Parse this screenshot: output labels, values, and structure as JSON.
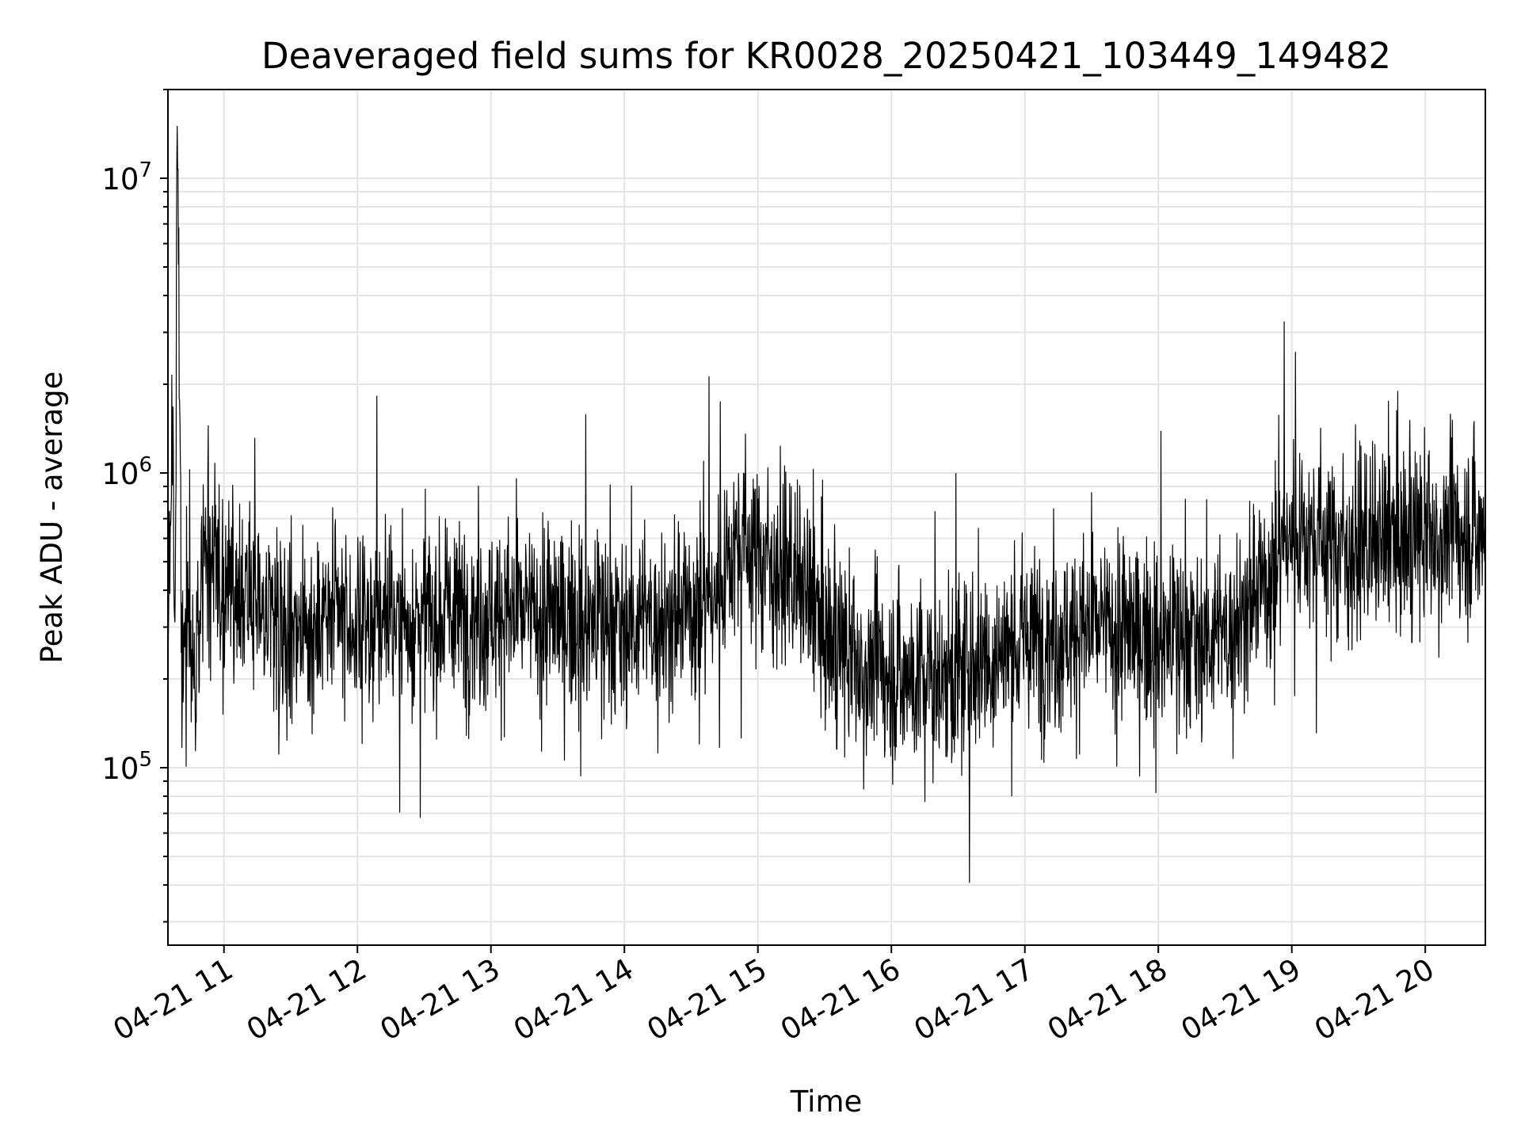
{
  "chart_data": {
    "type": "line",
    "title": "Deaveraged field sums for KR0028_20250421_103449_149482",
    "xlabel": "Time",
    "ylabel": "Peak ADU - average",
    "y_scale": "log",
    "ylim": [
      25000,
      20000000
    ],
    "xlim": [
      "2025-04-21 10:34:49",
      "2025-04-21 20:27:00"
    ],
    "x_ticks": [
      "2025-04-21 11:00",
      "2025-04-21 12:00",
      "2025-04-21 13:00",
      "2025-04-21 14:00",
      "2025-04-21 15:00",
      "2025-04-21 16:00",
      "2025-04-21 17:00",
      "2025-04-21 18:00",
      "2025-04-21 19:00",
      "2025-04-21 20:00"
    ],
    "x_tick_labels": [
      "04-21 11",
      "04-21 12",
      "04-21 13",
      "04-21 14",
      "04-21 15",
      "04-21 16",
      "04-21 17",
      "04-21 18",
      "04-21 19",
      "04-21 20"
    ],
    "y_ticks": [
      100000,
      1000000,
      10000000
    ],
    "y_tick_labels": [
      {
        "base": "10",
        "exp": "5"
      },
      {
        "base": "10",
        "exp": "6"
      },
      {
        "base": "10",
        "exp": "7"
      }
    ],
    "grid": true,
    "line_color": "#000000",
    "grid_color": "#e5e5e5",
    "series": [
      {
        "x": [
          "2025-04-21 10:34:49",
          "2025-04-21 10:37:00",
          "2025-04-21 10:38:00",
          "2025-04-21 10:39:00",
          "2025-04-21 10:41:00",
          "2025-04-21 10:44:00",
          "2025-04-21 10:47:00",
          "2025-04-21 10:50:00",
          "2025-04-21 10:52:00",
          "2025-04-21 10:55:00",
          "2025-04-21 10:58:00",
          "2025-04-21 11:00:00",
          "2025-04-21 11:15:00",
          "2025-04-21 11:30:00",
          "2025-04-21 11:45:00",
          "2025-04-21 12:00:00",
          "2025-04-21 12:20:00",
          "2025-04-21 12:40:00",
          "2025-04-21 13:00:00",
          "2025-04-21 13:20:00",
          "2025-04-21 13:40:00",
          "2025-04-21 14:00:00",
          "2025-04-21 14:20:00",
          "2025-04-21 14:40:00",
          "2025-04-21 14:50:00",
          "2025-04-21 15:00:00",
          "2025-04-21 15:20:00",
          "2025-04-21 15:30:00",
          "2025-04-21 15:45:00",
          "2025-04-21 16:00:00",
          "2025-04-21 16:20:00",
          "2025-04-21 16:40:00",
          "2025-04-21 17:00:00",
          "2025-04-21 17:30:00",
          "2025-04-21 18:00:00",
          "2025-04-21 18:30:00",
          "2025-04-21 18:50:00",
          "2025-04-21 19:00:00",
          "2025-04-21 19:30:00",
          "2025-04-21 20:00:00",
          "2025-04-21 20:27:00"
        ],
        "values": [
          400000,
          1300000,
          260000,
          15000000,
          230000,
          300000,
          200000,
          450000,
          700000,
          600000,
          400000,
          350000,
          330000,
          300000,
          310000,
          300000,
          320000,
          330000,
          340000,
          330000,
          320000,
          310000,
          320000,
          380000,
          600000,
          550000,
          400000,
          280000,
          220000,
          210000,
          200000,
          230000,
          270000,
          300000,
          280000,
          280000,
          450000,
          650000,
          550000,
          600000,
          650000
        ]
      }
    ]
  }
}
